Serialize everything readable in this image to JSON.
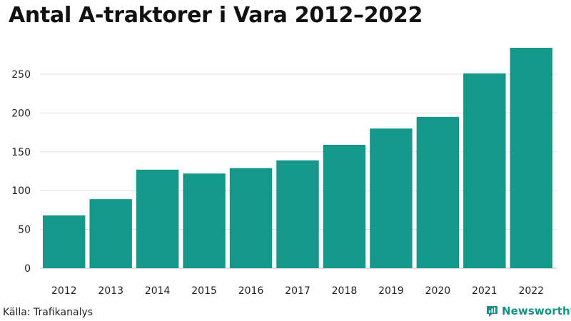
{
  "chart_data": {
    "type": "bar",
    "title": "Antal A-traktorer i Vara 2012–2022",
    "categories": [
      "2012",
      "2013",
      "2014",
      "2015",
      "2016",
      "2017",
      "2018",
      "2019",
      "2020",
      "2021",
      "2022"
    ],
    "values": [
      68,
      89,
      127,
      122,
      129,
      139,
      159,
      180,
      195,
      251,
      284
    ],
    "xlabel": "",
    "ylabel": "",
    "ylim": [
      0,
      290
    ],
    "yticks": [
      0,
      50,
      100,
      150,
      200,
      250
    ],
    "grid": true,
    "bar_color": "#15978a"
  },
  "footer": {
    "source": "Källa: Trafikanalys",
    "brand": "Newsworthy"
  },
  "colors": {
    "bar": "#15978a",
    "grid": "#dddddd",
    "brand": "#1a8f86"
  }
}
